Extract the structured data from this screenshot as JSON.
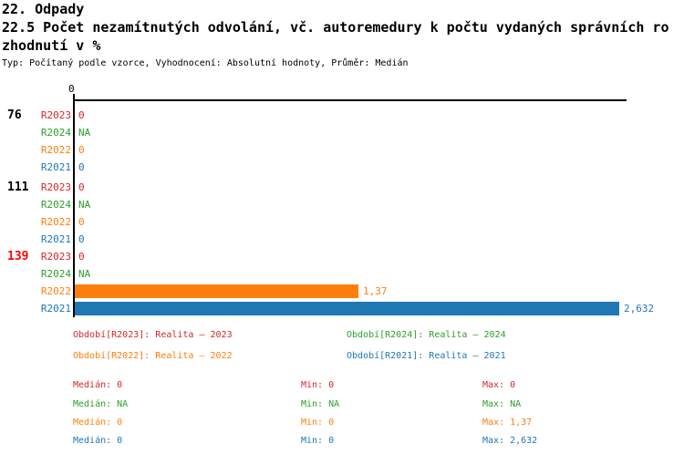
{
  "header": {
    "section_title": "22. Odpady",
    "title_line1": "22.5 Počet nezamítnutých odvolání, vč. autoremedury k počtu vydaných správních ro",
    "title_line2": "zhodnutí v %",
    "meta": "Typ: Počítaný podle vzorce, Vyhodnocení: Absolutní hodnoty, Průměr: Medián"
  },
  "chart_data": {
    "type": "bar",
    "orientation": "horizontal",
    "title": "22.5 Počet nezamítnutých odvolání, vč. autoremedury k počtu vydaných správních rozhodnutí v %",
    "x_axis": {
      "tick_label": "0",
      "range": [
        0,
        2.66
      ],
      "grid": false
    },
    "series_order": [
      "R2023",
      "R2024",
      "R2022",
      "R2021"
    ],
    "series_colors": {
      "R2023": "#d62728",
      "R2024": "#2ca02c",
      "R2022": "#ff7f0e",
      "R2021": "#1f77b4"
    },
    "groups": [
      {
        "label": "76",
        "label_color": "#000000",
        "rows": [
          {
            "series": "R2023",
            "value": 0,
            "value_label": "0"
          },
          {
            "series": "R2024",
            "value": null,
            "value_label": "NA"
          },
          {
            "series": "R2022",
            "value": 0,
            "value_label": "0"
          },
          {
            "series": "R2021",
            "value": 0,
            "value_label": "0"
          }
        ]
      },
      {
        "label": "111",
        "label_color": "#000000",
        "rows": [
          {
            "series": "R2023",
            "value": 0,
            "value_label": "0"
          },
          {
            "series": "R2024",
            "value": null,
            "value_label": "NA"
          },
          {
            "series": "R2022",
            "value": 0,
            "value_label": "0"
          },
          {
            "series": "R2021",
            "value": 0,
            "value_label": "0"
          }
        ]
      },
      {
        "label": "139",
        "label_color": "#ff0000",
        "rows": [
          {
            "series": "R2023",
            "value": 0,
            "value_label": "0"
          },
          {
            "series": "R2024",
            "value": null,
            "value_label": "NA"
          },
          {
            "series": "R2022",
            "value": 1.37,
            "value_label": "1,37"
          },
          {
            "series": "R2021",
            "value": 2.632,
            "value_label": "2,632"
          }
        ]
      }
    ]
  },
  "legend": {
    "items": [
      {
        "id": "R2023",
        "label": "Období[R2023]: Realita – 2023",
        "color": "#d62728"
      },
      {
        "id": "R2024",
        "label": "Období[R2024]: Realita – 2024",
        "color": "#2ca02c"
      },
      {
        "id": "R2022",
        "label": "Období[R2022]: Realita – 2022",
        "color": "#ff7f0e"
      },
      {
        "id": "R2021",
        "label": "Období[R2021]: Realita – 2021",
        "color": "#1f77b4"
      }
    ]
  },
  "stats": {
    "rows": [
      {
        "series": "R2023",
        "color": "#d62728",
        "median": "Medián: 0",
        "min": "Min: 0",
        "max": "Max: 0"
      },
      {
        "series": "R2024",
        "color": "#2ca02c",
        "median": "Medián: NA",
        "min": "Min: NA",
        "max": "Max: NA"
      },
      {
        "series": "R2022",
        "color": "#ff7f0e",
        "median": "Medián: 0",
        "min": "Min: 0",
        "max": "Max: 1,37"
      },
      {
        "series": "R2021",
        "color": "#1f77b4",
        "median": "Medián: 0",
        "min": "Min: 0",
        "max": "Max: 2,632"
      }
    ]
  }
}
